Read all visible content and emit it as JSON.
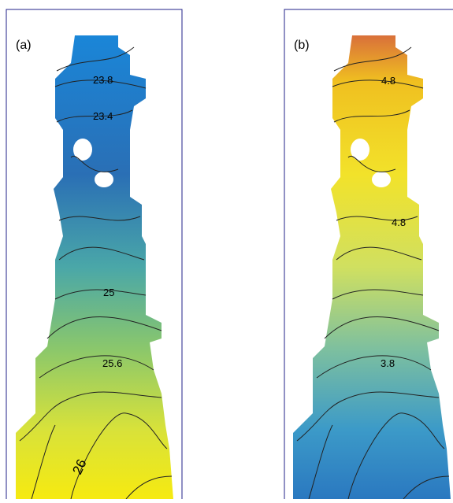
{
  "panels": [
    {
      "label": "(a)",
      "contour_labels": [
        "23.8",
        "23.4",
        "25",
        "25.6",
        "26"
      ]
    },
    {
      "label": "(b)",
      "contour_labels": [
        "4.8",
        "4.8",
        "3.8"
      ]
    }
  ]
}
